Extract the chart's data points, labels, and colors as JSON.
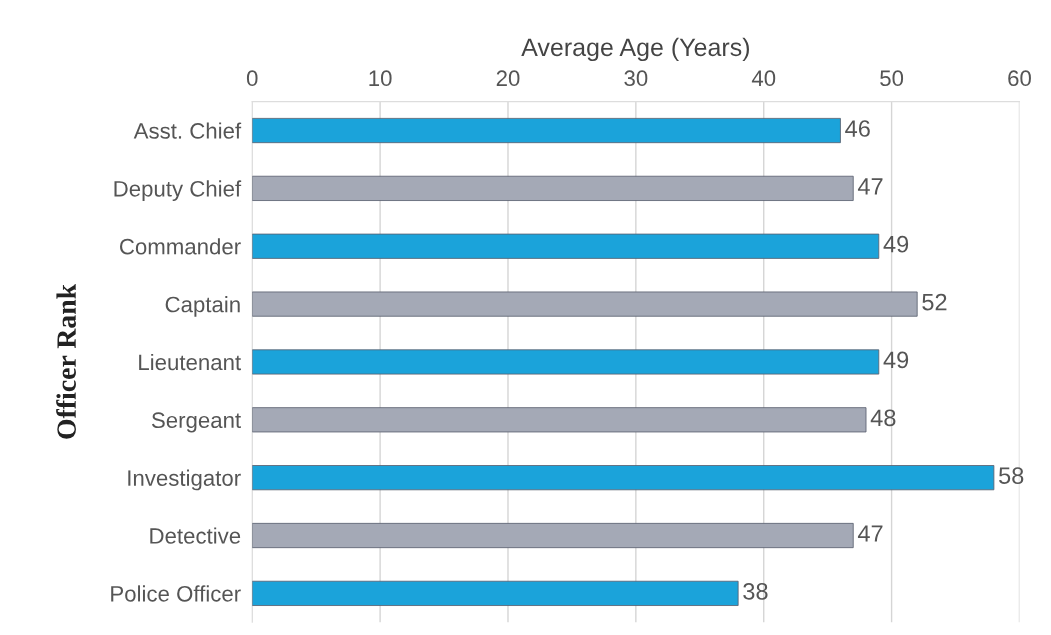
{
  "chart_data": {
    "type": "bar",
    "orientation": "horizontal",
    "xlabel": "Average Age (Years)",
    "ylabel": "Officer Rank",
    "categories": [
      "Asst. Chief",
      "Deputy Chief",
      "Commander",
      "Captain",
      "Lieutenant",
      "Sergeant",
      "Investigator",
      "Detective",
      "Police Officer"
    ],
    "values": [
      46,
      47,
      49,
      52,
      49,
      48,
      58,
      47,
      38
    ],
    "colors": [
      "#1ba3da",
      "#a4a9b6",
      "#1ba3da",
      "#a4a9b6",
      "#1ba3da",
      "#a4a9b6",
      "#1ba3da",
      "#a4a9b6",
      "#1ba3da"
    ],
    "xlim": [
      0,
      60
    ],
    "xticks": [
      0,
      10,
      20,
      30,
      40,
      50,
      60
    ],
    "grid": "x",
    "data_labels": true
  }
}
